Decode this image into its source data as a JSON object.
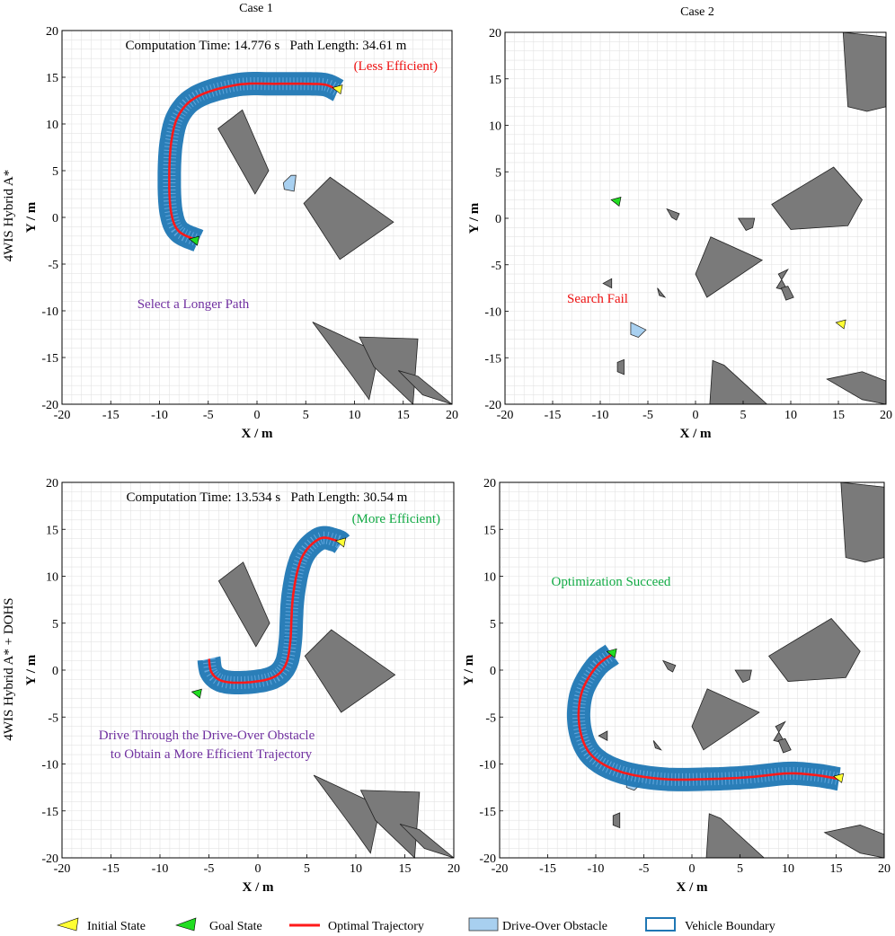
{
  "colors": {
    "obstacle": "#7a7a7a",
    "drive_over": "#a8d0f0",
    "vehicle": "#1f77b4",
    "trajectory": "#ff1a1a",
    "initial": "#ffff33",
    "goal": "#22dd22",
    "red_text": "#ee1111",
    "green_text": "#11aa44",
    "purple_text": "#7030a0",
    "grid": "#e3e3e3"
  },
  "column_titles": [
    "Case 1",
    "Case 2"
  ],
  "row_titles": [
    "4WIS Hybrid A*",
    "4WIS Hybrid A* + DOHS"
  ],
  "legend": [
    {
      "label": "Initial State",
      "icon": "initial-state-icon"
    },
    {
      "label": "Goal State",
      "icon": "goal-state-icon"
    },
    {
      "label": "Optimal Trajectory",
      "icon": "trajectory-line-icon"
    },
    {
      "label": "Drive-Over Obstacle",
      "icon": "drive-over-swatch-icon"
    },
    {
      "label": "Vehicle Boundary",
      "icon": "vehicle-boundary-swatch-icon"
    }
  ],
  "chart_data": [
    {
      "type": "scatter",
      "id": "case1-hybrid",
      "title": "Case 1",
      "xlabel": "X / m",
      "ylabel": "Y / m",
      "xlim": [
        -20,
        20
      ],
      "ylim": [
        -20,
        20
      ],
      "xticks": [
        -20,
        -15,
        -10,
        -5,
        0,
        5,
        10,
        15,
        20
      ],
      "yticks": [
        -20,
        -15,
        -10,
        -5,
        0,
        5,
        10,
        15,
        20
      ],
      "grid": true,
      "texts": {
        "stats": "Computation Time: 14.776 s   Path Length: 34.61 m",
        "efficiency": "(Less Efficient)",
        "note": "Select a Longer Path"
      },
      "obstacles": [
        [
          [
            -4,
            9.5
          ],
          [
            -1.5,
            11.5
          ],
          [
            1.2,
            5
          ],
          [
            -0.2,
            2.5
          ]
        ],
        [
          [
            4.8,
            1.5
          ],
          [
            7.5,
            4.3
          ],
          [
            14,
            -0.5
          ],
          [
            8.5,
            -4.5
          ]
        ],
        [
          [
            5.7,
            -11.2
          ],
          [
            9.8,
            -17
          ],
          [
            11.5,
            -19.5
          ],
          [
            12.5,
            -14.5
          ]
        ],
        [
          [
            10.5,
            -12.8
          ],
          [
            16.5,
            -13
          ],
          [
            16,
            -20
          ],
          [
            12,
            -16
          ]
        ],
        [
          [
            14.5,
            -16.4
          ],
          [
            16.5,
            -17
          ],
          [
            20,
            -20
          ],
          [
            17,
            -19
          ]
        ]
      ],
      "drive_over": [
        [
          [
            2.7,
            3.7
          ],
          [
            3.5,
            4.5
          ],
          [
            4,
            4.5
          ],
          [
            3.8,
            2.8
          ],
          [
            2.8,
            3
          ]
        ]
      ],
      "path": [
        [
          -6,
          -2.5
        ],
        [
          -8,
          -1.5
        ],
        [
          -8.8,
          0.5
        ],
        [
          -9,
          4
        ],
        [
          -8.8,
          8
        ],
        [
          -8,
          11
        ],
        [
          -6,
          13
        ],
        [
          -2,
          14.2
        ],
        [
          2,
          14.3
        ],
        [
          5,
          14.3
        ],
        [
          7,
          14.2
        ],
        [
          8.3,
          13.6
        ]
      ],
      "initial_state": [
        8.3,
        13.6
      ],
      "goal_state": [
        -6.4,
        -2.6
      ],
      "status": "success"
    },
    {
      "type": "scatter",
      "id": "case2-hybrid",
      "title": "Case 2",
      "xlabel": "X / m",
      "ylabel": "Y / m",
      "xlim": [
        -20,
        20
      ],
      "ylim": [
        -20,
        20
      ],
      "xticks": [
        -20,
        -15,
        -10,
        -5,
        0,
        5,
        10,
        15,
        20
      ],
      "yticks": [
        -20,
        -15,
        -10,
        -5,
        0,
        5,
        10,
        15,
        20
      ],
      "grid": true,
      "texts": {
        "status": "Search Fail"
      },
      "obstacles": [
        [
          [
            15.5,
            20
          ],
          [
            20,
            19.5
          ],
          [
            20,
            12
          ],
          [
            18,
            11.5
          ],
          [
            16,
            12
          ]
        ],
        [
          [
            8,
            1.5
          ],
          [
            14.5,
            5.5
          ],
          [
            17.5,
            2
          ],
          [
            16,
            -0.8
          ],
          [
            10,
            -1.2
          ]
        ],
        [
          [
            1.6,
            -2
          ],
          [
            7,
            -4.5
          ],
          [
            1.2,
            -8.5
          ],
          [
            0,
            -6
          ]
        ],
        [
          [
            -3,
            1
          ],
          [
            -1.7,
            0.5
          ],
          [
            -2,
            -0.2
          ],
          [
            -2.5,
            0.1
          ]
        ],
        [
          [
            4.5,
            0
          ],
          [
            6.2,
            0
          ],
          [
            6,
            -1
          ],
          [
            5.3,
            -1.3
          ]
        ],
        [
          [
            8.7,
            -6
          ],
          [
            9.7,
            -7.8
          ],
          [
            8.5,
            -7.5
          ],
          [
            9.7,
            -5.5
          ]
        ],
        [
          [
            -9.7,
            -7
          ],
          [
            -8.8,
            -6.5
          ],
          [
            -8.8,
            -7.5
          ]
        ],
        [
          [
            -4,
            -7.5
          ],
          [
            -3.2,
            -8.5
          ],
          [
            -3.8,
            -8.3
          ]
        ],
        [
          [
            -8.2,
            -15.5
          ],
          [
            -7.5,
            -15.2
          ],
          [
            -7.5,
            -16.8
          ],
          [
            -8.2,
            -16.5
          ]
        ],
        [
          [
            1.8,
            -15.3
          ],
          [
            3,
            -15.8
          ],
          [
            7.5,
            -20
          ],
          [
            1.5,
            -20
          ]
        ],
        [
          [
            13.8,
            -17.3
          ],
          [
            17.5,
            -16.5
          ],
          [
            20,
            -17.5
          ],
          [
            20,
            -20
          ],
          [
            17.5,
            -19.5
          ]
        ],
        [
          [
            9,
            -7.5
          ],
          [
            9.7,
            -7.3
          ],
          [
            10.3,
            -8.5
          ],
          [
            9.5,
            -8.8
          ]
        ]
      ],
      "drive_over": [
        [
          [
            -6.8,
            -11.2
          ],
          [
            -5.2,
            -12
          ],
          [
            -6,
            -12.8
          ],
          [
            -6.8,
            -12.5
          ]
        ]
      ],
      "path": [],
      "initial_state": [
        15.3,
        -11.5
      ],
      "goal_state": [
        -8.3,
        1.7
      ],
      "status": "fail"
    },
    {
      "type": "scatter",
      "id": "case1-dohs",
      "title": "Case 1",
      "xlabel": "X / m",
      "ylabel": "Y / m",
      "xlim": [
        -20,
        20
      ],
      "ylim": [
        -20,
        20
      ],
      "xticks": [
        -20,
        -15,
        -10,
        -5,
        0,
        5,
        10,
        15,
        20
      ],
      "yticks": [
        -20,
        -15,
        -10,
        -5,
        0,
        5,
        10,
        15,
        20
      ],
      "grid": true,
      "texts": {
        "stats": "Computation Time: 13.534 s   Path Length: 30.54 m",
        "efficiency": "(More Efficient)",
        "note_line1": "Drive Through the Drive-Over Obstacle",
        "note_line2": "to Obtain a More Efficient Trajectory"
      },
      "obstacles": [
        [
          [
            -4,
            9.5
          ],
          [
            -1.5,
            11.5
          ],
          [
            1.2,
            5
          ],
          [
            -0.2,
            2.5
          ]
        ],
        [
          [
            4.8,
            1.5
          ],
          [
            7.5,
            4.3
          ],
          [
            14,
            -0.5
          ],
          [
            8.5,
            -4.5
          ]
        ],
        [
          [
            5.7,
            -11.2
          ],
          [
            9.8,
            -17
          ],
          [
            11.5,
            -19.5
          ],
          [
            12.5,
            -14.5
          ]
        ],
        [
          [
            10.5,
            -12.8
          ],
          [
            16.5,
            -13
          ],
          [
            16,
            -20
          ],
          [
            12,
            -16
          ]
        ],
        [
          [
            14.5,
            -16.4
          ],
          [
            16.5,
            -17
          ],
          [
            20,
            -20
          ],
          [
            17,
            -19
          ]
        ]
      ],
      "drive_over": [
        [
          [
            2.7,
            3.7
          ],
          [
            3.5,
            4.5
          ],
          [
            4,
            4.5
          ],
          [
            3.8,
            2.8
          ],
          [
            2.8,
            3
          ]
        ]
      ],
      "path": [
        [
          -5,
          1.2
        ],
        [
          -4.7,
          -0.3
        ],
        [
          -3.5,
          -1.2
        ],
        [
          -1,
          -1.3
        ],
        [
          1.5,
          -0.8
        ],
        [
          2.8,
          0.5
        ],
        [
          3.3,
          3
        ],
        [
          3.6,
          8
        ],
        [
          4.5,
          12
        ],
        [
          6.3,
          14
        ],
        [
          8,
          13.8
        ],
        [
          8.5,
          13.5
        ]
      ],
      "initial_state": [
        8.5,
        13.5
      ],
      "goal_state": [
        -6.2,
        -2.6
      ],
      "status": "success"
    },
    {
      "type": "scatter",
      "id": "case2-dohs",
      "title": "Case 2",
      "xlabel": "X / m",
      "ylabel": "Y / m",
      "xlim": [
        -20,
        20
      ],
      "ylim": [
        -20,
        20
      ],
      "xticks": [
        -20,
        -15,
        -10,
        -5,
        0,
        5,
        10,
        15,
        20
      ],
      "yticks": [
        -20,
        -15,
        -10,
        -5,
        0,
        5,
        10,
        15,
        20
      ],
      "grid": true,
      "texts": {
        "status": "Optimization Succeed"
      },
      "obstacles": [
        [
          [
            15.5,
            20
          ],
          [
            20,
            19.5
          ],
          [
            20,
            12
          ],
          [
            18,
            11.5
          ],
          [
            16,
            12
          ]
        ],
        [
          [
            8,
            1.5
          ],
          [
            14.5,
            5.5
          ],
          [
            17.5,
            2
          ],
          [
            16,
            -0.8
          ],
          [
            10,
            -1.2
          ]
        ],
        [
          [
            1.6,
            -2
          ],
          [
            7,
            -4.5
          ],
          [
            1.2,
            -8.5
          ],
          [
            0,
            -6
          ]
        ],
        [
          [
            -3,
            1
          ],
          [
            -1.7,
            0.5
          ],
          [
            -2,
            -0.2
          ],
          [
            -2.5,
            0.1
          ]
        ],
        [
          [
            4.5,
            0
          ],
          [
            6.2,
            0
          ],
          [
            6,
            -1
          ],
          [
            5.3,
            -1.3
          ]
        ],
        [
          [
            8.7,
            -6
          ],
          [
            9.7,
            -7.8
          ],
          [
            8.5,
            -7.5
          ],
          [
            9.7,
            -5.5
          ]
        ],
        [
          [
            -9.7,
            -7
          ],
          [
            -8.8,
            -6.5
          ],
          [
            -8.8,
            -7.5
          ]
        ],
        [
          [
            -4,
            -7.5
          ],
          [
            -3.2,
            -8.5
          ],
          [
            -3.8,
            -8.3
          ]
        ],
        [
          [
            -8.2,
            -15.5
          ],
          [
            -7.5,
            -15.2
          ],
          [
            -7.5,
            -16.8
          ],
          [
            -8.2,
            -16.5
          ]
        ],
        [
          [
            1.8,
            -15.3
          ],
          [
            3,
            -15.8
          ],
          [
            7.5,
            -20
          ],
          [
            1.5,
            -20
          ]
        ],
        [
          [
            13.8,
            -17.3
          ],
          [
            17.5,
            -16.5
          ],
          [
            20,
            -17.5
          ],
          [
            20,
            -20
          ],
          [
            17.5,
            -19.5
          ]
        ],
        [
          [
            9,
            -7.5
          ],
          [
            9.7,
            -7.3
          ],
          [
            10.3,
            -8.5
          ],
          [
            9.5,
            -8.8
          ]
        ]
      ],
      "drive_over": [
        [
          [
            -6.8,
            -11.2
          ],
          [
            -5.2,
            -12
          ],
          [
            -6,
            -12.8
          ],
          [
            -6.8,
            -12.5
          ]
        ]
      ],
      "path": [
        [
          -8.3,
          1.7
        ],
        [
          -10,
          0.3
        ],
        [
          -11.5,
          -2.5
        ],
        [
          -11.7,
          -6
        ],
        [
          -10.5,
          -9
        ],
        [
          -7.5,
          -10.8
        ],
        [
          -3,
          -11.6
        ],
        [
          2,
          -11.6
        ],
        [
          6,
          -11.4
        ],
        [
          10,
          -11
        ],
        [
          13,
          -11.2
        ],
        [
          15.3,
          -11.6
        ]
      ],
      "initial_state": [
        15.3,
        -11.6
      ],
      "goal_state": [
        -8.3,
        1.7
      ],
      "status": "success"
    }
  ]
}
